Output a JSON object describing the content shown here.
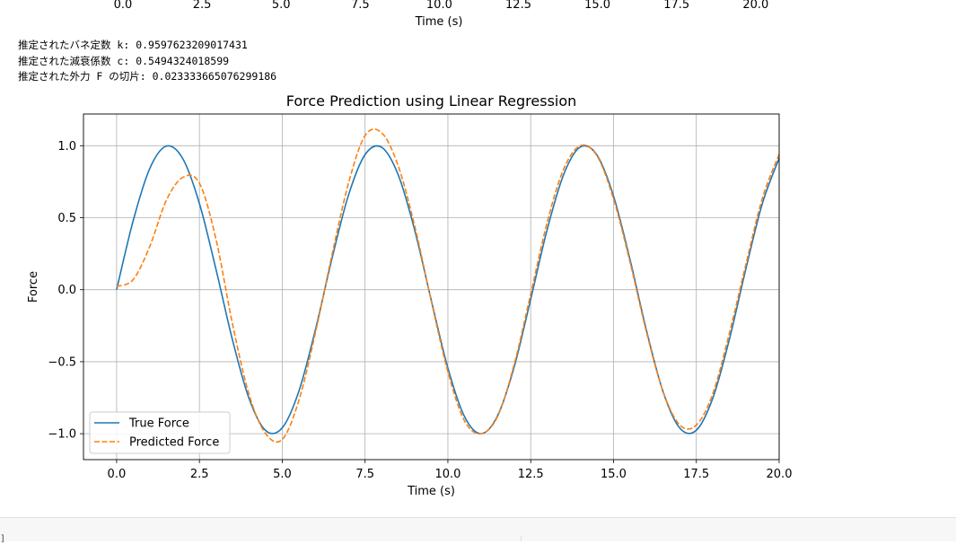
{
  "top_axis": {
    "ticks": [
      "0.0",
      "2.5",
      "5.0",
      "7.5",
      "10.0",
      "12.5",
      "15.0",
      "17.5",
      "20.0"
    ],
    "xlabel": "Time (s)"
  },
  "output_lines": [
    "推定されたバネ定数 k: 0.9597623209017431",
    "推定された減衰係数 c: 0.5494324018599",
    "推定された外力 F の切片: 0.023333665076299186"
  ],
  "chart_data": {
    "type": "line",
    "title": "Force Prediction using Linear Regression",
    "xlabel": "Time (s)",
    "ylabel": "Force",
    "xlim": [
      -1,
      20
    ],
    "ylim": [
      -1.18,
      1.22
    ],
    "xticks": [
      0,
      2.5,
      5,
      7.5,
      10,
      12.5,
      15,
      17.5,
      20
    ],
    "xtick_labels": [
      "0.0",
      "2.5",
      "5.0",
      "7.5",
      "10.0",
      "12.5",
      "15.0",
      "17.5",
      "20.0"
    ],
    "yticks": [
      -1,
      -0.5,
      0,
      0.5,
      1
    ],
    "ytick_labels": [
      "−1.0",
      "−0.5",
      "0.0",
      "0.5",
      "1.0"
    ],
    "grid": true,
    "legend_position": "lower-left",
    "series": [
      {
        "name": "True Force",
        "color": "#1f77b4",
        "style": "solid",
        "x": [
          0,
          0.5,
          1,
          1.5,
          2,
          2.5,
          3,
          3.5,
          4,
          4.5,
          5,
          5.5,
          6,
          6.5,
          7,
          7.5,
          8,
          8.5,
          9,
          9.5,
          10,
          10.5,
          11,
          11.5,
          12,
          12.5,
          13,
          13.5,
          14,
          14.5,
          15,
          15.5,
          16,
          16.5,
          17,
          17.5,
          18,
          18.5,
          19,
          19.5,
          20
        ],
        "y": [
          0,
          0.479,
          0.841,
          0.997,
          0.909,
          0.598,
          0.141,
          -0.351,
          -0.757,
          -0.978,
          -0.959,
          -0.706,
          -0.279,
          0.215,
          0.657,
          0.938,
          0.989,
          0.798,
          0.412,
          -0.075,
          -0.544,
          -0.88,
          -1.0,
          -0.875,
          -0.537,
          -0.066,
          0.42,
          0.803,
          0.991,
          0.935,
          0.65,
          0.207,
          -0.288,
          -0.712,
          -0.961,
          -0.976,
          -0.751,
          -0.342,
          0.15,
          0.604,
          0.913
        ]
      },
      {
        "name": "Predicted Force",
        "color": "#ff7f0e",
        "style": "dashed",
        "x": [
          0,
          0.5,
          1,
          1.5,
          2,
          2.5,
          3,
          3.5,
          4,
          4.5,
          5,
          5.5,
          6,
          6.5,
          7,
          7.5,
          8,
          8.5,
          9,
          9.5,
          10,
          10.5,
          11,
          11.5,
          12,
          12.5,
          13,
          13.5,
          14,
          14.5,
          15,
          15.5,
          16,
          16.5,
          17,
          17.5,
          18,
          18.5,
          19,
          19.5,
          20
        ],
        "y": [
          0.023,
          0.07,
          0.3,
          0.62,
          0.78,
          0.74,
          0.35,
          -0.24,
          -0.73,
          -1.0,
          -1.04,
          -0.77,
          -0.3,
          0.24,
          0.74,
          1.07,
          1.09,
          0.86,
          0.44,
          -0.08,
          -0.57,
          -0.91,
          -1.0,
          -0.88,
          -0.52,
          -0.03,
          0.47,
          0.84,
          1.0,
          0.93,
          0.63,
          0.19,
          -0.3,
          -0.71,
          -0.94,
          -0.94,
          -0.72,
          -0.3,
          0.18,
          0.64,
          0.94
        ]
      }
    ]
  },
  "colors": {
    "spine": "#000000",
    "grid": "#b0b0b0"
  }
}
